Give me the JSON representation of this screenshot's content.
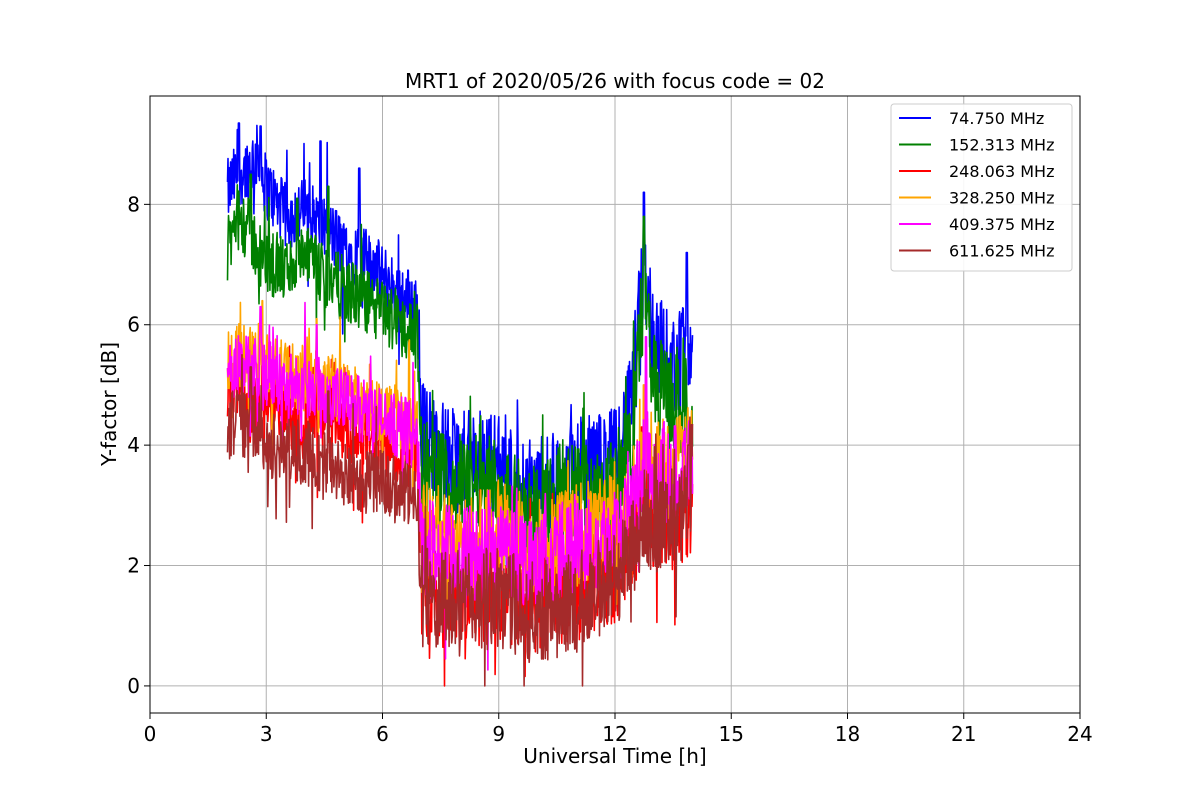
{
  "chart_data": {
    "type": "line",
    "title": "MRT1 of 2020/05/26 with focus code = 02",
    "xlabel": "Universal Time [h]",
    "ylabel": "Y-factor [dB]",
    "xlim": [
      0,
      24
    ],
    "ylim": [
      -0.45,
      9.8
    ],
    "xticks": [
      0,
      3,
      6,
      9,
      12,
      15,
      18,
      21,
      24
    ],
    "yticks": [
      0,
      2,
      4,
      6,
      8
    ],
    "grid": true,
    "legend_position": "top-right",
    "series": [
      {
        "name": "74.750 MHz",
        "color": "#0000ff",
        "x": [
          2.0,
          2.25,
          2.5,
          2.75,
          3.0,
          3.5,
          4.0,
          4.5,
          5.0,
          5.5,
          6.0,
          6.5,
          6.9,
          7.0,
          7.5,
          8.0,
          8.5,
          9.0,
          9.5,
          10.0,
          10.5,
          11.0,
          11.5,
          12.0,
          12.4,
          12.75,
          13.0,
          13.5,
          13.9,
          14.0
        ],
        "y": [
          8.2,
          8.5,
          8.6,
          8.8,
          8.3,
          7.8,
          7.9,
          7.6,
          7.3,
          7.1,
          6.8,
          6.5,
          6.3,
          4.3,
          3.9,
          3.7,
          3.8,
          3.7,
          3.4,
          3.2,
          3.4,
          3.6,
          3.7,
          3.8,
          4.6,
          7.0,
          5.8,
          5.3,
          5.6,
          5.4
        ],
        "peaks": [
          [
            2.3,
            9.35
          ],
          [
            2.85,
            9.3
          ],
          [
            4.4,
            9.05
          ],
          [
            5.4,
            8.6
          ],
          [
            12.75,
            8.2
          ],
          [
            13.85,
            7.2
          ]
        ]
      },
      {
        "name": "152.313 MHz",
        "color": "#008000",
        "x": [
          2.0,
          2.25,
          2.5,
          2.75,
          3.0,
          3.5,
          4.0,
          4.5,
          5.0,
          5.5,
          6.0,
          6.5,
          6.9,
          7.0,
          7.5,
          8.0,
          8.5,
          9.0,
          9.5,
          10.0,
          10.5,
          11.0,
          11.5,
          12.0,
          12.4,
          12.75,
          13.0,
          13.5,
          13.9,
          14.0
        ],
        "y": [
          7.2,
          7.8,
          7.6,
          7.3,
          7.0,
          6.9,
          7.1,
          6.8,
          6.6,
          6.4,
          6.2,
          6.0,
          5.8,
          3.7,
          3.4,
          3.3,
          3.5,
          3.3,
          3.0,
          2.9,
          3.1,
          3.2,
          3.3,
          3.3,
          4.0,
          6.6,
          5.0,
          4.7,
          4.6,
          4.5
        ],
        "peaks": [
          [
            2.6,
            8.5
          ],
          [
            3.8,
            8.1
          ],
          [
            4.6,
            8.3
          ],
          [
            12.75,
            7.8
          ]
        ]
      },
      {
        "name": "248.063 MHz",
        "color": "#ff0000",
        "x": [
          2.0,
          2.25,
          2.5,
          2.75,
          3.0,
          3.5,
          4.0,
          4.5,
          5.0,
          5.5,
          6.0,
          6.5,
          6.9,
          7.0,
          7.5,
          8.0,
          8.5,
          9.0,
          9.5,
          10.0,
          10.5,
          11.0,
          11.5,
          12.0,
          12.4,
          12.75,
          13.0,
          13.5,
          13.9,
          14.0
        ],
        "y": [
          5.0,
          5.0,
          4.8,
          4.6,
          4.5,
          4.5,
          4.4,
          4.4,
          4.2,
          4.1,
          4.0,
          3.9,
          3.8,
          1.7,
          1.6,
          1.5,
          1.5,
          1.5,
          1.4,
          1.4,
          1.5,
          1.6,
          1.7,
          1.9,
          2.2,
          3.0,
          2.8,
          2.7,
          3.0,
          3.0
        ],
        "peaks": [
          [
            2.9,
            5.8
          ],
          [
            12.7,
            4.3
          ]
        ]
      },
      {
        "name": "328.250 MHz",
        "color": "#ffa500",
        "x": [
          2.0,
          2.25,
          2.5,
          2.75,
          3.0,
          3.5,
          4.0,
          4.5,
          5.0,
          5.5,
          6.0,
          6.5,
          6.9,
          7.0,
          7.5,
          8.0,
          8.5,
          9.0,
          9.5,
          10.0,
          10.5,
          11.0,
          11.5,
          12.0,
          12.4,
          12.75,
          13.0,
          13.5,
          13.9,
          14.0
        ],
        "y": [
          5.4,
          5.5,
          5.5,
          5.6,
          5.3,
          5.2,
          5.1,
          5.0,
          4.9,
          4.7,
          4.6,
          4.4,
          4.2,
          2.6,
          2.5,
          2.3,
          2.4,
          2.6,
          2.4,
          2.3,
          2.4,
          2.5,
          2.6,
          2.8,
          3.0,
          3.9,
          3.7,
          3.6,
          3.8,
          3.8
        ],
        "peaks": [
          [
            2.9,
            6.4
          ],
          [
            4.3,
            6.1
          ],
          [
            12.75,
            5.0
          ]
        ]
      },
      {
        "name": "409.375 MHz",
        "color": "#ff00ff",
        "x": [
          2.0,
          2.25,
          2.5,
          2.75,
          3.0,
          3.5,
          4.0,
          4.5,
          5.0,
          5.5,
          6.0,
          6.5,
          6.9,
          7.0,
          7.5,
          8.0,
          8.5,
          9.0,
          9.5,
          10.0,
          10.5,
          11.0,
          11.5,
          12.0,
          12.4,
          12.75,
          13.0,
          13.5,
          13.9,
          14.0
        ],
        "y": [
          5.2,
          5.3,
          5.3,
          5.4,
          5.2,
          5.0,
          5.0,
          4.9,
          4.7,
          4.6,
          4.4,
          4.3,
          4.1,
          2.4,
          2.2,
          2.1,
          2.2,
          2.3,
          2.2,
          2.1,
          2.2,
          2.3,
          2.4,
          2.5,
          2.8,
          3.8,
          3.6,
          3.5,
          3.8,
          3.8
        ],
        "peaks": [
          [
            2.85,
            6.3
          ],
          [
            4.3,
            6.0
          ],
          [
            12.8,
            5.8
          ]
        ]
      },
      {
        "name": "611.625 MHz",
        "color": "#a52a2a",
        "x": [
          2.0,
          2.25,
          2.5,
          2.75,
          3.0,
          3.5,
          4.0,
          4.5,
          5.0,
          5.5,
          6.0,
          6.5,
          6.9,
          7.0,
          7.5,
          8.0,
          8.5,
          9.0,
          9.5,
          10.0,
          10.5,
          11.0,
          11.5,
          12.0,
          12.4,
          12.75,
          13.0,
          13.5,
          13.9,
          14.0
        ],
        "y": [
          4.3,
          4.4,
          4.3,
          4.2,
          4.0,
          3.9,
          3.9,
          3.7,
          3.5,
          3.4,
          3.4,
          3.2,
          3.1,
          1.5,
          1.4,
          1.3,
          1.4,
          1.5,
          1.3,
          1.2,
          1.3,
          1.4,
          1.6,
          1.8,
          2.2,
          2.8,
          2.7,
          2.5,
          3.0,
          3.8
        ],
        "peaks": [
          [
            2.6,
            5.3
          ],
          [
            4.6,
            4.9
          ],
          [
            13.9,
            4.0
          ]
        ]
      }
    ]
  }
}
